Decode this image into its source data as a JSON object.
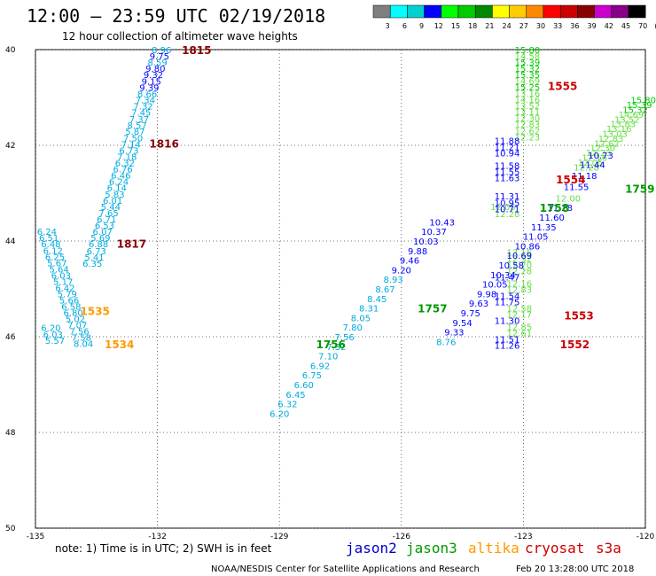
{
  "header": {
    "title": "12:00 – 23:59 UTC 02/19/2018",
    "subtitle": "12 hour collection of altimeter wave heights"
  },
  "scale": {
    "labels": [
      "3",
      "6",
      "9",
      "12",
      "15",
      "18",
      "21",
      "24",
      "27",
      "30",
      "33",
      "36",
      "39",
      "42",
      "45",
      "70",
      "(ft)"
    ],
    "colors": [
      "#7f7f7f",
      "#00ffff",
      "#00d0d0",
      "#0000ff",
      "#00ff00",
      "#00cc00",
      "#008800",
      "#ffff00",
      "#ffcc00",
      "#ff8800",
      "#ff0000",
      "#cc0000",
      "#880000",
      "#cc00cc",
      "#880088",
      "#000000"
    ]
  },
  "footer": {
    "note": "note:  1) Time is in UTC; 2) SWH is in feet",
    "credit": "NOAA/NESDIS Center for Satellite Applications and Research",
    "timestamp": "Feb 20 13:28:00 UTC 2018"
  },
  "chart_data": {
    "type": "scatter",
    "title": "12:00 – 23:59 UTC 02/19/2018",
    "subtitle": "12 hour collection of altimeter wave heights",
    "x_ticks": [
      "-135",
      "-132",
      "-129",
      "-126",
      "-123",
      "-120"
    ],
    "y_ticks": [
      "40",
      "42",
      "44",
      "46",
      "48",
      "50"
    ],
    "xlim": [
      -135,
      -120
    ],
    "ylim": [
      40,
      50
    ],
    "y_inverted": true,
    "grid": "dotted",
    "legend": [
      "jason2",
      "jason3",
      "altika",
      "cryosat",
      "s3a"
    ],
    "legend_colors": [
      "#0000cc",
      "#009900",
      "#ff9900",
      "#cc0000",
      "#cc0000"
    ],
    "series": [
      {
        "name": "s3a",
        "color_rule": "by-value",
        "points": [
          [
            -131.9,
            40.0,
            "8.96"
          ],
          [
            -131.95,
            40.13,
            "9.75"
          ],
          [
            -132.0,
            40.26,
            "8.59"
          ],
          [
            -132.05,
            40.39,
            "9.80"
          ],
          [
            -132.1,
            40.52,
            "9.32"
          ],
          [
            -132.15,
            40.66,
            "9.15"
          ],
          [
            -132.2,
            40.79,
            "9.39"
          ],
          [
            -132.25,
            40.92,
            "8.66"
          ],
          [
            -132.3,
            41.05,
            "7.34"
          ],
          [
            -132.35,
            41.18,
            "7.32"
          ],
          [
            -132.4,
            41.31,
            "7.45"
          ],
          [
            -132.45,
            41.44,
            "7.37"
          ],
          [
            -132.5,
            41.57,
            "8.57"
          ],
          [
            -132.55,
            41.7,
            "5.87"
          ],
          [
            -132.6,
            41.84,
            "7.50"
          ],
          [
            -132.65,
            41.97,
            "7.14"
          ],
          [
            -132.7,
            42.1,
            "6.73"
          ],
          [
            -132.75,
            42.23,
            "7.18"
          ],
          [
            -132.8,
            42.36,
            "6.32"
          ],
          [
            -132.85,
            42.49,
            "6.76"
          ],
          [
            -132.9,
            42.62,
            "6.46"
          ],
          [
            -132.95,
            42.75,
            "6.24"
          ],
          [
            -133.0,
            42.88,
            "6.14"
          ],
          [
            -133.05,
            43.02,
            "5.83"
          ],
          [
            -133.1,
            43.15,
            "6.01"
          ],
          [
            -133.15,
            43.28,
            "5.44"
          ],
          [
            -133.2,
            43.41,
            "7.65"
          ],
          [
            -133.25,
            43.54,
            "6.71"
          ],
          [
            -133.3,
            43.67,
            "6.53"
          ],
          [
            -133.35,
            43.8,
            "6.07"
          ],
          [
            -133.4,
            43.93,
            "5.69"
          ],
          [
            -133.45,
            44.06,
            "6.88"
          ],
          [
            -133.5,
            44.2,
            "6.73"
          ],
          [
            -133.55,
            44.33,
            "5.41"
          ],
          [
            -133.6,
            44.46,
            "6.35"
          ],
          [
            -134.72,
            43.8,
            "6.24"
          ],
          [
            -134.67,
            43.93,
            "6.51"
          ],
          [
            -134.62,
            44.06,
            "6.48"
          ],
          [
            -134.57,
            44.19,
            "6.12"
          ],
          [
            -134.52,
            44.32,
            "6.25"
          ],
          [
            -134.47,
            44.45,
            "5.67"
          ],
          [
            -134.42,
            44.58,
            "5.64"
          ],
          [
            -134.37,
            44.71,
            "6.03"
          ],
          [
            -134.32,
            44.84,
            "5.17"
          ],
          [
            -134.27,
            44.97,
            "6.42"
          ],
          [
            -134.22,
            45.1,
            "5.79"
          ],
          [
            -134.17,
            45.23,
            "5.66"
          ],
          [
            -134.12,
            45.36,
            "6.58"
          ],
          [
            -134.07,
            45.49,
            "6.80"
          ],
          [
            -134.02,
            45.62,
            "5.02"
          ],
          [
            -133.97,
            45.75,
            "7.07"
          ],
          [
            -133.92,
            45.88,
            "7.56"
          ],
          [
            -133.87,
            46.01,
            "7.58"
          ],
          [
            -133.82,
            46.14,
            "8.04"
          ],
          [
            -134.62,
            45.81,
            "6.20"
          ],
          [
            -134.57,
            45.94,
            "6.03"
          ],
          [
            -134.52,
            46.07,
            "5.57"
          ]
        ]
      },
      {
        "name": "jason3",
        "color_rule": "by-value",
        "points": [
          [
            -122.9,
            40.0,
            "15.80"
          ],
          [
            -122.9,
            40.13,
            "14.58"
          ],
          [
            -122.9,
            40.26,
            "15.39"
          ],
          [
            -122.9,
            40.39,
            "15.32"
          ],
          [
            -122.9,
            40.52,
            "15.35"
          ],
          [
            -122.9,
            40.65,
            "14.69"
          ],
          [
            -122.9,
            40.78,
            "15.25"
          ],
          [
            -122.9,
            40.91,
            "13.16"
          ],
          [
            -122.9,
            41.04,
            "14.16"
          ],
          [
            -122.9,
            41.17,
            "13.52"
          ],
          [
            -122.9,
            41.3,
            "13.11"
          ],
          [
            -122.9,
            41.43,
            "12.30"
          ],
          [
            -122.9,
            41.56,
            "12.83"
          ],
          [
            -122.9,
            41.69,
            "12.62"
          ],
          [
            -122.9,
            41.82,
            "12.23"
          ],
          [
            -123.1,
            44.23,
            "13.16"
          ],
          [
            -123.1,
            44.36,
            "12.32"
          ],
          [
            -123.1,
            44.49,
            "12.70"
          ],
          [
            -123.1,
            44.62,
            "12.28"
          ],
          [
            -123.1,
            44.88,
            "12.16"
          ],
          [
            -123.1,
            45.01,
            "12.83"
          ],
          [
            -123.1,
            45.4,
            "12.58"
          ],
          [
            -123.1,
            45.53,
            "12.17"
          ],
          [
            -123.1,
            45.79,
            "12.85"
          ],
          [
            -123.1,
            45.92,
            "12.61"
          ],
          [
            -123.5,
            43.28,
            "12.05"
          ],
          [
            -123.4,
            43.43,
            "12.28"
          ],
          [
            -120.05,
            41.05,
            "15.80"
          ],
          [
            -120.15,
            41.15,
            "15.39"
          ],
          [
            -120.25,
            41.25,
            "15.32"
          ],
          [
            -120.35,
            41.35,
            "14.69"
          ],
          [
            -120.45,
            41.45,
            "13.52"
          ],
          [
            -120.55,
            41.55,
            "13.83"
          ],
          [
            -120.65,
            41.65,
            "13.16"
          ],
          [
            -120.75,
            41.75,
            "13.03"
          ],
          [
            -120.85,
            41.85,
            "12.83"
          ],
          [
            -120.95,
            41.95,
            "12.62"
          ],
          [
            -121.05,
            42.05,
            "12.30"
          ],
          [
            -121.15,
            42.15,
            "12.23"
          ],
          [
            -121.25,
            42.25,
            "12.16"
          ],
          [
            -121.35,
            42.35,
            "12.05"
          ],
          [
            -121.45,
            42.45,
            "12.28"
          ]
        ]
      },
      {
        "name": "jason2",
        "color_rule": "by-value",
        "points": [
          [
            -123.4,
            41.9,
            "11.88"
          ],
          [
            -123.4,
            42.03,
            "11.21"
          ],
          [
            -123.4,
            42.16,
            "10.94"
          ],
          [
            -123.4,
            42.42,
            "11.58"
          ],
          [
            -123.4,
            42.55,
            "11.55"
          ],
          [
            -123.4,
            42.68,
            "11.63"
          ],
          [
            -123.4,
            43.06,
            "11.31"
          ],
          [
            -123.4,
            43.19,
            "10.95"
          ],
          [
            -123.4,
            43.32,
            "10.71"
          ],
          [
            -123.4,
            44.75,
            "11.47"
          ],
          [
            -123.4,
            45.14,
            "11.54"
          ],
          [
            -123.4,
            45.27,
            "11.75"
          ],
          [
            -123.4,
            45.66,
            "11.30"
          ],
          [
            -123.4,
            46.05,
            "11.51"
          ],
          [
            -123.4,
            46.18,
            "11.26"
          ],
          [
            -121.1,
            42.2,
            "10.73"
          ],
          [
            -121.3,
            42.4,
            "11.44"
          ],
          [
            -121.5,
            42.63,
            "11.18"
          ],
          [
            -121.7,
            42.86,
            "11.55"
          ],
          [
            -121.9,
            43.1,
            "12.00"
          ],
          [
            -122.1,
            43.3,
            "11.28"
          ],
          [
            -122.3,
            43.5,
            "11.60"
          ],
          [
            -122.5,
            43.7,
            "11.35"
          ],
          [
            -122.7,
            43.9,
            "11.05"
          ],
          [
            -122.9,
            44.1,
            "10.86"
          ],
          [
            -123.1,
            44.3,
            "10.69"
          ],
          [
            -123.3,
            44.5,
            "10.58"
          ],
          [
            -123.5,
            44.7,
            "10.34"
          ],
          [
            -123.7,
            44.9,
            "10.05"
          ],
          [
            -123.9,
            45.1,
            "9.98"
          ],
          [
            -124.1,
            45.3,
            "9.63"
          ],
          [
            -124.3,
            45.5,
            "9.75"
          ],
          [
            -124.5,
            45.7,
            "9.54"
          ],
          [
            -124.7,
            45.9,
            "9.33"
          ],
          [
            -124.9,
            46.1,
            "8.76"
          ],
          [
            -125.0,
            43.6,
            "10.43"
          ],
          [
            -125.2,
            43.8,
            "10.37"
          ],
          [
            -125.4,
            44.0,
            "10.03"
          ],
          [
            -125.6,
            44.2,
            "9.88"
          ],
          [
            -125.8,
            44.4,
            "9.46"
          ],
          [
            -126.0,
            44.6,
            "9.20"
          ],
          [
            -126.2,
            44.8,
            "8.93"
          ],
          [
            -126.4,
            45.0,
            "8.67"
          ],
          [
            -126.6,
            45.2,
            "8.45"
          ],
          [
            -126.8,
            45.4,
            "8.31"
          ],
          [
            -127.0,
            45.6,
            "8.05"
          ],
          [
            -127.2,
            45.8,
            "7.80"
          ],
          [
            -127.4,
            46.0,
            "7.56"
          ],
          [
            -127.6,
            46.2,
            "7.32"
          ],
          [
            -127.8,
            46.4,
            "7.10"
          ],
          [
            -128.0,
            46.6,
            "6.92"
          ],
          [
            -128.2,
            46.8,
            "6.75"
          ],
          [
            -128.4,
            47.0,
            "6.60"
          ],
          [
            -128.6,
            47.2,
            "6.45"
          ],
          [
            -128.8,
            47.4,
            "6.32"
          ],
          [
            -129.0,
            47.6,
            "6.20"
          ]
        ]
      }
    ],
    "time_labels": [
      {
        "text": "1815",
        "lon": -131.4,
        "lat": 40.0,
        "color": "#880000"
      },
      {
        "text": "1816",
        "lon": -132.2,
        "lat": 41.95,
        "color": "#880000"
      },
      {
        "text": "1817",
        "lon": -133.0,
        "lat": 44.05,
        "color": "#880000"
      },
      {
        "text": "1534",
        "lon": -133.3,
        "lat": 46.15,
        "color": "#ff9900"
      },
      {
        "text": "1535",
        "lon": -133.9,
        "lat": 45.45,
        "color": "#ff9900"
      },
      {
        "text": "1555",
        "lon": -122.4,
        "lat": 40.75,
        "color": "#cc0000"
      },
      {
        "text": "1554",
        "lon": -122.2,
        "lat": 42.7,
        "color": "#cc0000"
      },
      {
        "text": "1553",
        "lon": -122.0,
        "lat": 45.55,
        "color": "#cc0000"
      },
      {
        "text": "1552",
        "lon": -122.1,
        "lat": 46.15,
        "color": "#cc0000"
      },
      {
        "text": "1759",
        "lon": -120.5,
        "lat": 42.9,
        "color": "#009900"
      },
      {
        "text": "1758",
        "lon": -122.6,
        "lat": 43.3,
        "color": "#009900"
      },
      {
        "text": "1757",
        "lon": -125.6,
        "lat": 45.4,
        "color": "#009900"
      },
      {
        "text": "1756",
        "lon": -128.1,
        "lat": 46.15,
        "color": "#009900"
      }
    ]
  }
}
